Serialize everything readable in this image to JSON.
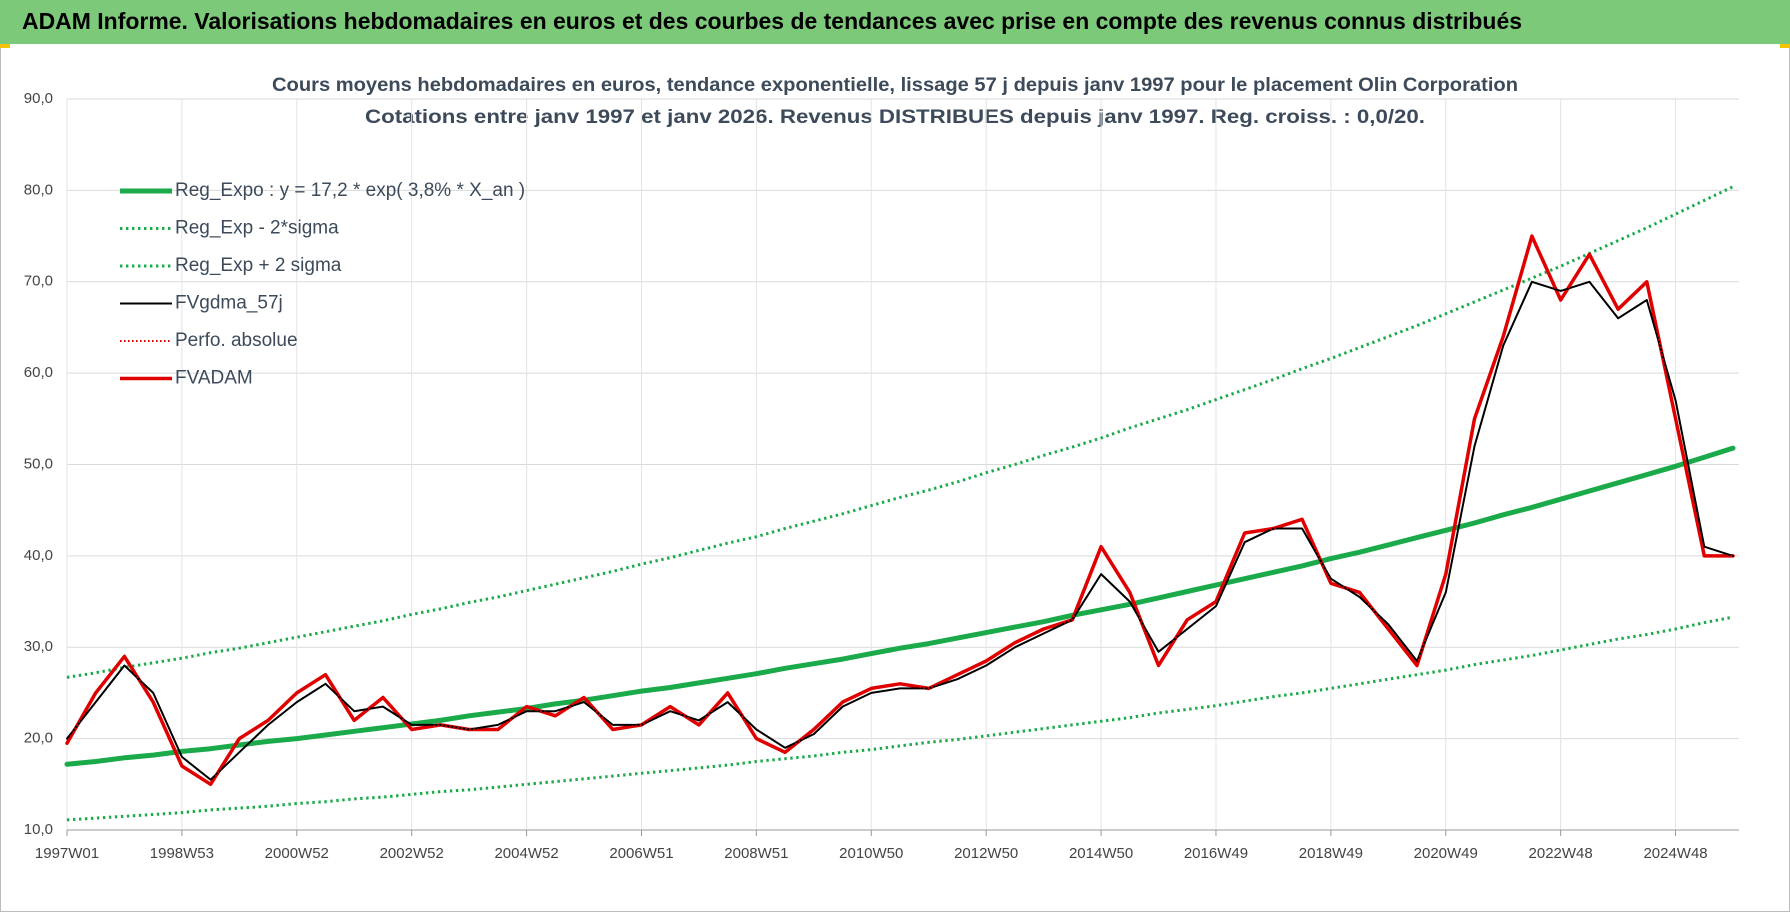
{
  "header": {
    "title": "ADAM Informe. Valorisations hebdomadaires en euros et des courbes de tendances avec prise en compte des revenus connus distribués"
  },
  "chart_data": {
    "type": "line",
    "title": "Cours moyens hebdomadaires en euros, tendance exponentielle, lissage 57 j depuis janv 1997  pour le placement Olin Corporation",
    "subtitle": "Cotations entre janv 1997 et janv 2026. Revenus DISTRIBUES depuis janv 1997. Reg. croiss. : 0,0/20.",
    "categories": [
      "1997W01",
      null,
      null,
      null,
      "1998W53",
      null,
      null,
      null,
      "2000W52",
      null,
      null,
      null,
      "2002W52",
      null,
      null,
      null,
      "2004W52",
      null,
      null,
      null,
      "2006W51",
      null,
      null,
      null,
      "2008W51",
      null,
      null,
      null,
      "2010W50",
      null,
      null,
      null,
      "2012W50",
      null,
      null,
      null,
      "2014W50",
      null,
      null,
      null,
      "2016W49",
      null,
      null,
      null,
      "2018W49",
      null,
      null,
      null,
      "2020W49",
      null,
      null,
      null,
      "2022W48",
      null,
      null,
      null,
      "2024W48",
      null,
      null
    ],
    "ylim": [
      10,
      90
    ],
    "yticks": [
      {
        "value": 10,
        "label": "10,0"
      },
      {
        "value": 20,
        "label": "20,0"
      },
      {
        "value": 30,
        "label": "30,0"
      },
      {
        "value": 40,
        "label": "40,0"
      },
      {
        "value": 50,
        "label": "50,0"
      },
      {
        "value": 60,
        "label": "60,0"
      },
      {
        "value": 70,
        "label": "70,0"
      },
      {
        "value": 80,
        "label": "80,0"
      },
      {
        "value": 90,
        "label": "90,0"
      }
    ],
    "grid": true,
    "legend": "upper left",
    "series": [
      {
        "name": "Reg_Expo : y = 17,2 * exp( 3,8% *  X_an )",
        "color": "#1aaa4a",
        "style": "solid",
        "width": 5,
        "values": [
          17.2,
          17.5,
          17.9,
          18.2,
          18.6,
          18.9,
          19.3,
          19.7,
          20.0,
          20.4,
          20.8,
          21.2,
          21.6,
          22.0,
          22.5,
          22.9,
          23.3,
          23.8,
          24.2,
          24.7,
          25.2,
          25.6,
          26.1,
          26.6,
          27.1,
          27.7,
          28.2,
          28.7,
          29.3,
          29.9,
          30.4,
          31.0,
          31.6,
          32.2,
          32.8,
          33.5,
          34.1,
          34.7,
          35.4,
          36.1,
          36.8,
          37.5,
          38.2,
          38.9,
          39.7,
          40.4,
          41.2,
          42.0,
          42.8,
          43.6,
          44.5,
          45.3,
          46.2,
          47.1,
          48.0,
          48.9,
          49.8,
          50.8,
          51.8
        ]
      },
      {
        "name": "Reg_Exp - 2*sigma",
        "color": "#1aaa4a",
        "style": "dotted",
        "width": 3,
        "values": [
          11.1,
          11.3,
          11.5,
          11.7,
          11.9,
          12.2,
          12.4,
          12.6,
          12.9,
          13.1,
          13.4,
          13.6,
          13.9,
          14.2,
          14.4,
          14.7,
          15.0,
          15.3,
          15.6,
          15.9,
          16.2,
          16.5,
          16.8,
          17.1,
          17.5,
          17.8,
          18.1,
          18.5,
          18.8,
          19.2,
          19.6,
          19.9,
          20.3,
          20.7,
          21.1,
          21.5,
          21.9,
          22.3,
          22.8,
          23.2,
          23.6,
          24.1,
          24.6,
          25.0,
          25.5,
          26.0,
          26.5,
          27.0,
          27.5,
          28.1,
          28.6,
          29.1,
          29.7,
          30.3,
          30.9,
          31.4,
          32.0,
          32.7,
          33.3
        ]
      },
      {
        "name": "Reg_Exp + 2 sigma",
        "color": "#1aaa4a",
        "style": "dotted",
        "width": 3,
        "values": [
          26.7,
          27.2,
          27.8,
          28.3,
          28.8,
          29.4,
          29.9,
          30.5,
          31.1,
          31.7,
          32.3,
          32.9,
          33.6,
          34.2,
          34.9,
          35.5,
          36.2,
          36.9,
          37.6,
          38.3,
          39.1,
          39.8,
          40.6,
          41.4,
          42.1,
          43.0,
          43.8,
          44.6,
          45.5,
          46.4,
          47.2,
          48.1,
          49.1,
          50.0,
          51.0,
          51.9,
          52.9,
          54.0,
          55.0,
          56.0,
          57.1,
          58.2,
          59.3,
          60.5,
          61.6,
          62.8,
          64.0,
          65.2,
          66.5,
          67.8,
          69.1,
          70.4,
          71.7,
          73.1,
          74.5,
          75.9,
          77.4,
          78.9,
          80.4
        ]
      },
      {
        "name": "FVgdma_57j",
        "color": "#000000",
        "style": "solid",
        "width": 2,
        "values": [
          20,
          24,
          28,
          25,
          18,
          15.5,
          18.5,
          21.5,
          24,
          26,
          23,
          23.5,
          21.5,
          21.5,
          21,
          21.5,
          23,
          23,
          24,
          21.5,
          21.5,
          23,
          22,
          24,
          21,
          19,
          20.5,
          23.5,
          25,
          25.5,
          25.5,
          26.5,
          28,
          30,
          31.5,
          33,
          38,
          35,
          29.5,
          32,
          34.5,
          41.5,
          43,
          43,
          37.5,
          35.5,
          32.5,
          28.5,
          36,
          52,
          63,
          70,
          69,
          70,
          66,
          68,
          57,
          41,
          40
        ]
      },
      {
        "name": "Perfo. absolue",
        "color": "#e00000",
        "style": "dotted",
        "width": 2,
        "values": [
          19.5,
          25,
          29,
          24,
          17,
          15,
          20,
          22,
          25,
          27,
          22,
          24.5,
          21,
          21.5,
          21,
          21,
          23.5,
          22.5,
          24.5,
          21,
          21.5,
          23.5,
          21.5,
          25,
          20,
          18.5,
          21,
          24,
          25.5,
          26,
          25.5,
          27,
          28.5,
          30.5,
          32,
          33,
          41,
          36,
          28,
          33,
          35,
          42.5,
          43,
          44,
          37,
          36,
          32,
          28,
          38,
          55,
          64,
          75,
          68,
          73,
          67,
          70,
          55,
          40,
          40
        ]
      },
      {
        "name": "FVADAM",
        "color": "#e00000",
        "style": "solid",
        "width": 3.5,
        "values": [
          19.5,
          25,
          29,
          24,
          17,
          15,
          20,
          22,
          25,
          27,
          22,
          24.5,
          21,
          21.5,
          21,
          21,
          23.5,
          22.5,
          24.5,
          21,
          21.5,
          23.5,
          21.5,
          25,
          20,
          18.5,
          21,
          24,
          25.5,
          26,
          25.5,
          27,
          28.5,
          30.5,
          32,
          33,
          41,
          36,
          28,
          33,
          35,
          42.5,
          43,
          44,
          37,
          36,
          32,
          28,
          38,
          55,
          64,
          75,
          68,
          73,
          67,
          70,
          55,
          40,
          40
        ]
      }
    ]
  }
}
